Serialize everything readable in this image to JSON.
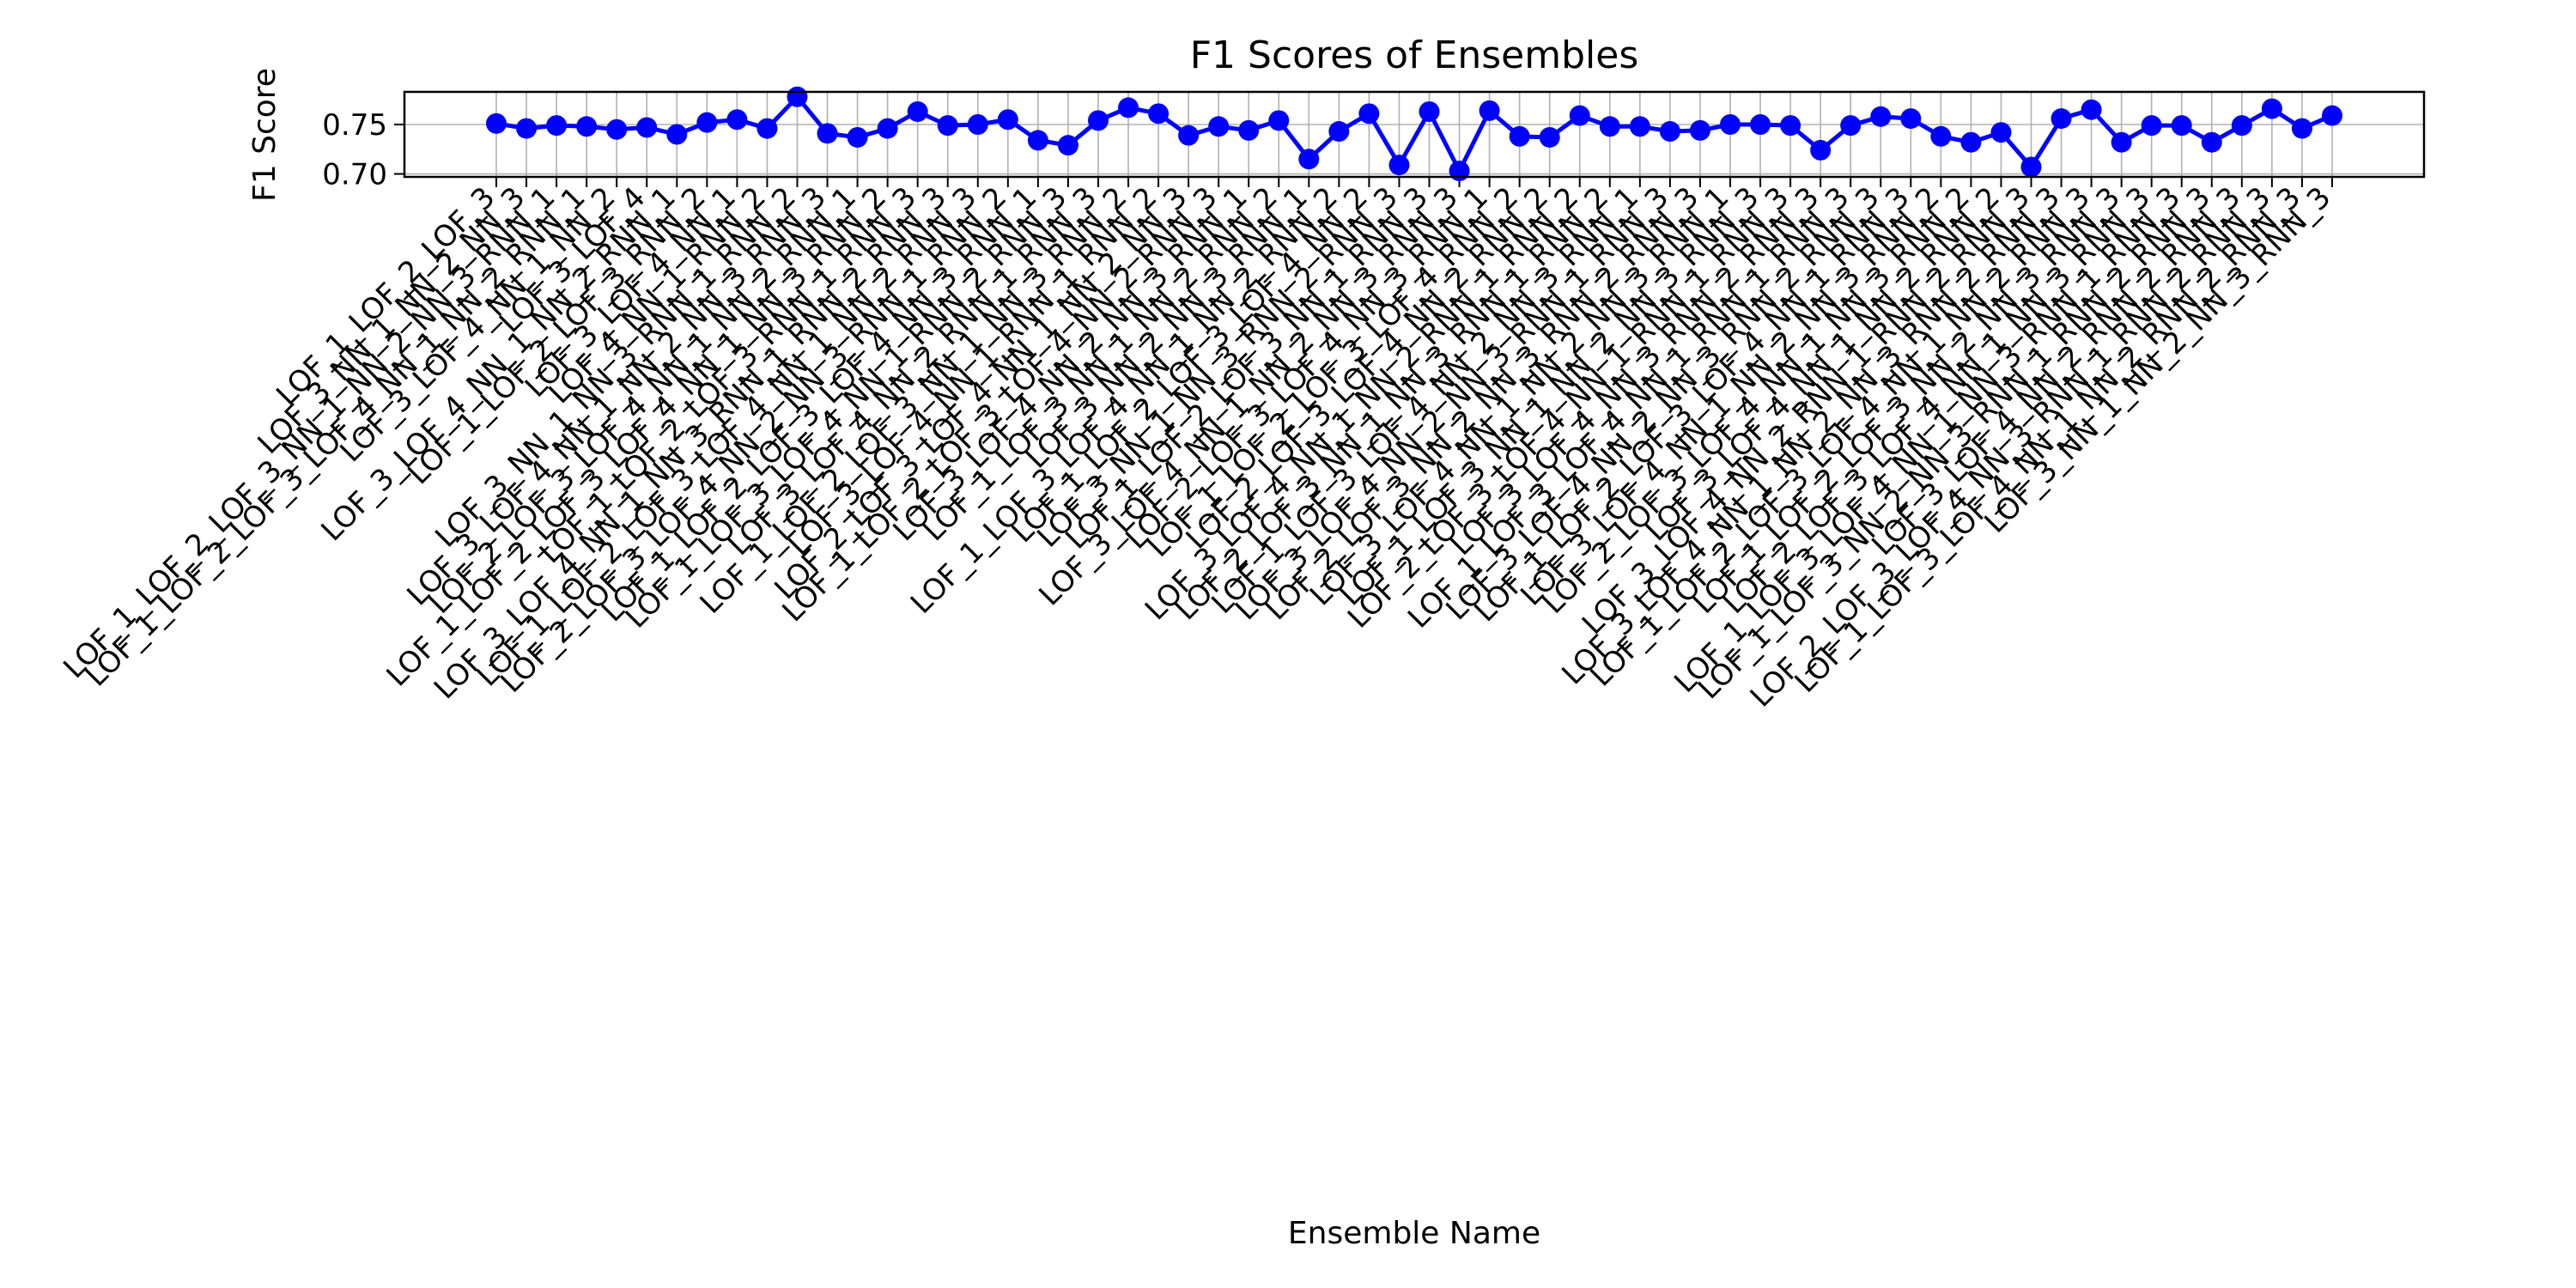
{
  "chart_data": {
    "type": "line",
    "title": "F1 Scores of Ensembles",
    "xlabel": "Ensemble Name",
    "ylabel": "F1 Score",
    "ylim": [
      0.697,
      0.783
    ],
    "yticks": [
      "0.70",
      "0.75"
    ],
    "grid": true,
    "marker": "circle",
    "colors": {
      "line": "#0000ff",
      "marker": "#0000ff",
      "grid": "#b0b0b0"
    },
    "series": [
      {
        "values": [
          0.751,
          0.746,
          0.749,
          0.748,
          0.745,
          0.747,
          0.74,
          0.752,
          0.755,
          0.746,
          0.778,
          0.741,
          0.737,
          0.746,
          0.763,
          0.749,
          0.75,
          0.755,
          0.734,
          0.729,
          0.754,
          0.767,
          0.761,
          0.739,
          0.748,
          0.744,
          0.754,
          0.715,
          0.743,
          0.761,
          0.709,
          0.763,
          0.703,
          0.764,
          0.738,
          0.737,
          0.759,
          0.748,
          0.748,
          0.743,
          0.744,
          0.75,
          0.75,
          0.749,
          0.724,
          0.749,
          0.758,
          0.756,
          0.738,
          0.732,
          0.742,
          0.707,
          0.756,
          0.765,
          0.732,
          0.749,
          0.749,
          0.732,
          0.749,
          0.766,
          0.746,
          0.759
        ]
      }
    ],
    "categories": [
      "LOF_1_LOF_2_LOF_3",
      "LOF_3_NN_1_NN_2_NN_3",
      "LOF_1_LOF_2_LOF_3_NN_1_NN_2_NN_3_RNN_1",
      "LOF_1_LOF_2_LOF_3_LOF_4_NN_1_NN_2_RNN_1",
      "LOF_3_LOF_4_NN_1_NN_2",
      "LOF_3_LOF_4",
      "LOF_3_LOF_4_NN_1_NN_2_RNN_1",
      "LOF_1_LOF_2_LOF_3_RNN_2",
      "LOF_3_LOF_4_NN_1",
      "LOF_4_NN_1_RNN_2",
      "LOF_3_NN_1_NN_3_RNN_1_RNN_2",
      "LOF_3_LOF_4_NN_1_NN_2_NN_3_RNN_3",
      "LOF_2_LOF_3_LOF_4_NN_1_NN_2_RNN_1",
      "LOF_1_LOF_2_LOF_3_LOF_4_NN_1_NN_3_RNN_2",
      "LOF_1_LOF_2_LOF_3_RNN_1_RNN_3",
      "LOF_3_LOF_4_NN_1_NN_3_RNN_1_RNN_2_RNN_3",
      "LOF_1_LOF_2_LOF_3_LOF_4_NN_1_NN_2_RNN_3",
      "LOF_2_LOF_3_LOF_4_NN_2_NN_3_RNN_1_RNN_2",
      "LOF_1_LOF_2_LOF_3_LOF_4_NN_3_RNN_1",
      "LOF_1_LOF_3_LOF_4_NN_1_RNN_2_RNN_3",
      "LOF_3_LOF_4_NN_2_RNN_1_RNN_3",
      "LOF_1_LOF_2_LOF_3_NN_1_NN_3_RNN_2",
      "LOF_3_LOF_4_NN_1_RNN_1_RNN_2",
      "LOF_2_LOF_3_LOF_4_NN_1_NN_2_NN_3",
      "LOF_1_LOF_2_LOF_3_LOF_4_NN_2_RNN_3",
      "LOF_3_LOF_4_NN_2_NN_3_RNN_1",
      "LOF_1_LOF_3_NN_1_NN_2_RNN_2",
      "LOF_3_NN_2_NN_3_RNN_1",
      "LOF_1_LOF_3_LOF_4_NN_1_NN_2_RNN_2",
      "LOF_1_LOF_2_LOF_3_LOF_4_NN_2",
      "LOF_3_NN_1_NN_3_RNN_2_RNN_3",
      "LOF_1_LOF_2_LOF_3_NN_1_RNN_3",
      "LOF_3_LOF_4_NN_1_NN_2_NN_3_RNN_3",
      "LOF_2_LOF_3_LOF_4_NN_3_RNN_1",
      "LOF_1_LOF_2_LOF_3_LOF_4_RNN_2",
      "LOF_2_LOF_3_LOF_4_NN_2_RNN_2",
      "LOF_3_LOF_4_NN_1_NN_2_RNN_1_RNN_2",
      "LOF_2_LOF_3_NN_1_NN_3_RNN_1_RNN_2",
      "LOF_1_LOF_3_LOF_4_NN_2_NN_3_RNN_1",
      "LOF_3_LOF_4_NN_2_NN_3_RNN_1_RNN_3",
      "LOF_2_LOF_3_NN_2_NN_3_RNN_2_RNN_3",
      "LOF_3_LOF_4_NN_1_NN_2_NN_3_RNN_1",
      "LOF_1_LOF_3_NN_1_NN_2_NN_3_RNN_3",
      "LOF_2_LOF_3_LOF_4_NN_1_RNN_1_RNN_3",
      "LOF_3_LOF_4_NN_3_RNN_2_RNN_3",
      "LOF_1_LOF_3_LOF_4_NN_1_RNN_1_RNN_3",
      "LOF_3_LOF_4_NN_2_NN_3_RNN_2_RNN_3",
      "LOF_1_LOF_2_LOF_3_LOF_4_NN_1_RNN_3",
      "LOF_3_LOF_4_NN_1_NN_2_NN_3_RNN_2",
      "LOF_2_LOF_3_LOF_4_NN_1_NN_3_RNN_2",
      "LOF_3_LOF_4_NN_1_NN_2_RNN_2",
      "LOF_3_LOF_4_NN_2_RNN_1_RNN_2_RNN_3",
      "LOF_3_LOF_4_NN_1_NN_2_NN_3_RNN_2_RNN_3",
      "LOF_1_LOF_2_LOF_3_LOF_4_NN_1_NN_2_RNN_3",
      "LOF_1_LOF_2_LOF_3_NN_2_NN_3_RNN_3",
      "LOF_2_LOF_3_LOF_4_NN_1_NN_3_RNN_3",
      "LOF_1_LOF_3_LOF_4_NN_1_NN_3_RNN_1_RNN_3",
      "LOF_1_LOF_3_NN_2_NN_3_RNN_1_RNN_2_RNN_3",
      "LOF_3_LOF_4_NN_2_RNN_2_RNN_3",
      "LOF_2_LOF_3_LOF_4_NN_3_RNN_1_RNN_2_RNN_3",
      "LOF_1_LOF_3_LOF_4_NN_1_NN_2_RNN_2_RNN_3",
      "LOF_3_NN_1_NN_2_NN_3_RNN_3"
    ]
  }
}
